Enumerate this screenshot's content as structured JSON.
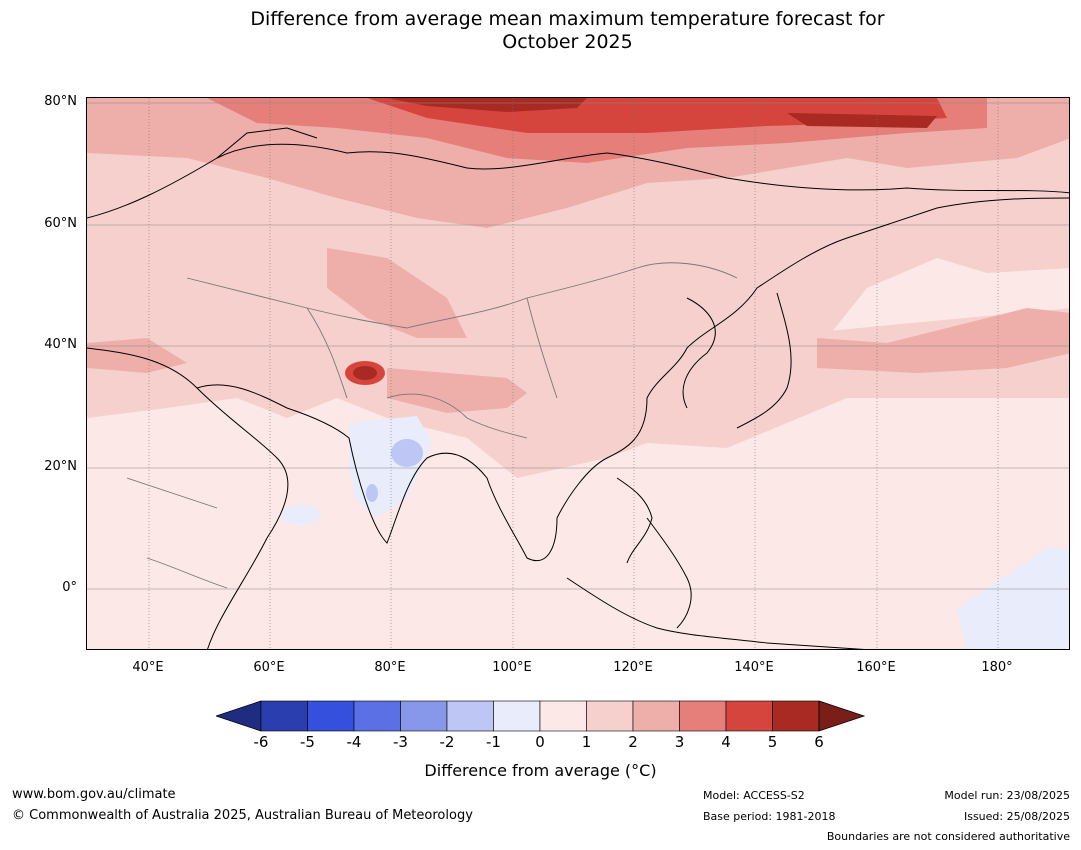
{
  "title": {
    "line1": "Difference from average mean maximum temperature forecast for",
    "line2": "October 2025"
  },
  "map": {
    "lat_labels": [
      "80°N",
      "60°N",
      "40°N",
      "20°N",
      "0°"
    ],
    "lon_labels": [
      "40°E",
      "60°E",
      "80°E",
      "100°E",
      "120°E",
      "140°E",
      "160°E",
      "180°"
    ],
    "extent": {
      "lon_min": 30,
      "lon_max": 192,
      "lat_min": -10,
      "lat_max": 80
    }
  },
  "colorbar": {
    "ticks": [
      "-6",
      "-5",
      "-4",
      "-3",
      "-2",
      "-1",
      "0",
      "1",
      "2",
      "3",
      "4",
      "5",
      "6"
    ],
    "colors": [
      "#1f2d80",
      "#2b3eb0",
      "#3550dd",
      "#5b70e4",
      "#8797ea",
      "#bdc6f5",
      "#e8ecfb",
      "#fce9e7",
      "#f5d0cd",
      "#eeaeaa",
      "#e67f7a",
      "#d6453d",
      "#a82a22",
      "#7a1e18"
    ],
    "label": "Difference from average (°C)"
  },
  "footer": {
    "website": "www.bom.gov.au/climate",
    "copyright": "© Commonwealth of Australia 2025, Australian Bureau of Meteorology",
    "model": "Model: ACCESS-S2",
    "base_period": "Base period: 1981-2018",
    "model_run": "Model run: 23/08/2025",
    "issued": "Issued: 25/08/2025",
    "disclaimer": "Boundaries are not considered authoritative"
  }
}
